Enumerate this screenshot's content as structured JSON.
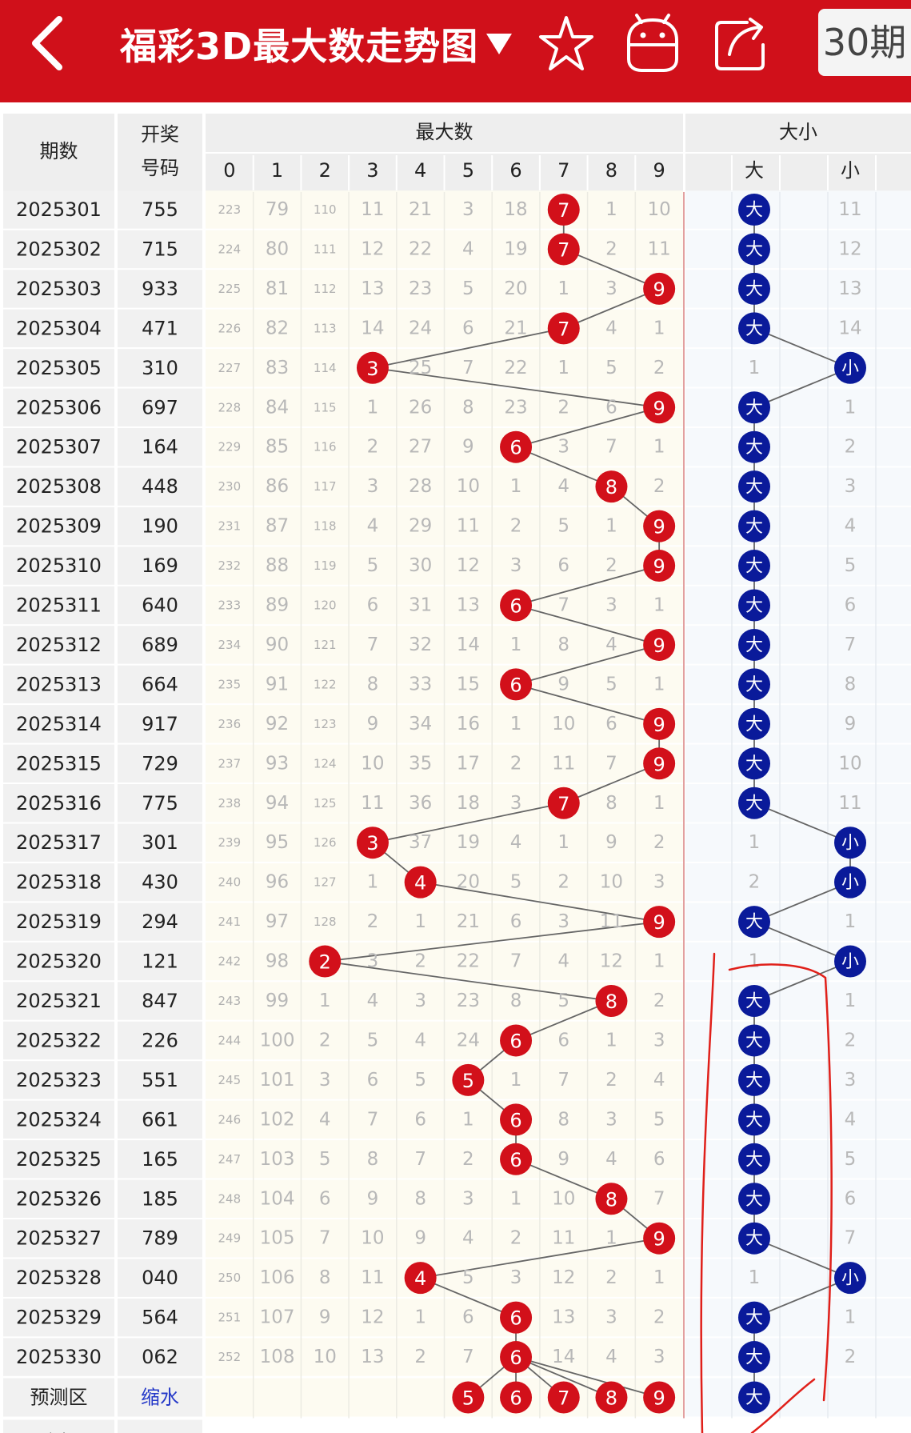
{
  "header": {
    "title": "福彩3D最大数走势图",
    "period_button": "30期",
    "icons": [
      "back-arrow-icon",
      "caret-down-icon",
      "star-icon",
      "android-icon",
      "share-icon"
    ],
    "bg_color": "#d0101a"
  },
  "table": {
    "col_period": "期数",
    "col_draw_line1": "开奖",
    "col_draw_line2": "号码",
    "group_max": "最大数",
    "group_size": "大小",
    "digits": [
      "0",
      "1",
      "2",
      "3",
      "4",
      "5",
      "6",
      "7",
      "8",
      "9"
    ],
    "size_big": "大",
    "size_small": "小",
    "rows": [
      {
        "period": "2025301",
        "draw": "755",
        "cells": [
          "223",
          "79",
          "110",
          "11",
          "21",
          "3",
          "18",
          "7",
          "1",
          "10"
        ],
        "max": 7,
        "size": "big",
        "size_miss": [
          "",
          "11"
        ]
      },
      {
        "period": "2025302",
        "draw": "715",
        "cells": [
          "224",
          "80",
          "111",
          "12",
          "22",
          "4",
          "19",
          "7",
          "2",
          "11"
        ],
        "max": 7,
        "size": "big",
        "size_miss": [
          "",
          "12"
        ]
      },
      {
        "period": "2025303",
        "draw": "933",
        "cells": [
          "225",
          "81",
          "112",
          "13",
          "23",
          "5",
          "20",
          "1",
          "3",
          "9"
        ],
        "max": 9,
        "size": "big",
        "size_miss": [
          "",
          "13"
        ]
      },
      {
        "period": "2025304",
        "draw": "471",
        "cells": [
          "226",
          "82",
          "113",
          "14",
          "24",
          "6",
          "21",
          "7",
          "4",
          "1"
        ],
        "max": 7,
        "size": "big",
        "size_miss": [
          "",
          "14"
        ]
      },
      {
        "period": "2025305",
        "draw": "310",
        "cells": [
          "227",
          "83",
          "114",
          "3",
          "25",
          "7",
          "22",
          "1",
          "5",
          "2"
        ],
        "max": 3,
        "size": "small",
        "size_miss": [
          "1",
          ""
        ]
      },
      {
        "period": "2025306",
        "draw": "697",
        "cells": [
          "228",
          "84",
          "115",
          "1",
          "26",
          "8",
          "23",
          "2",
          "6",
          "9"
        ],
        "max": 9,
        "size": "big",
        "size_miss": [
          "",
          "1"
        ]
      },
      {
        "period": "2025307",
        "draw": "164",
        "cells": [
          "229",
          "85",
          "116",
          "2",
          "27",
          "9",
          "6",
          "3",
          "7",
          "1"
        ],
        "max": 6,
        "size": "big",
        "size_miss": [
          "",
          "2"
        ]
      },
      {
        "period": "2025308",
        "draw": "448",
        "cells": [
          "230",
          "86",
          "117",
          "3",
          "28",
          "10",
          "1",
          "4",
          "8",
          "2"
        ],
        "max": 8,
        "size": "big",
        "size_miss": [
          "",
          "3"
        ]
      },
      {
        "period": "2025309",
        "draw": "190",
        "cells": [
          "231",
          "87",
          "118",
          "4",
          "29",
          "11",
          "2",
          "5",
          "1",
          "9"
        ],
        "max": 9,
        "size": "big",
        "size_miss": [
          "",
          "4"
        ]
      },
      {
        "period": "2025310",
        "draw": "169",
        "cells": [
          "232",
          "88",
          "119",
          "5",
          "30",
          "12",
          "3",
          "6",
          "2",
          "9"
        ],
        "max": 9,
        "size": "big",
        "size_miss": [
          "",
          "5"
        ]
      },
      {
        "period": "2025311",
        "draw": "640",
        "cells": [
          "233",
          "89",
          "120",
          "6",
          "31",
          "13",
          "6",
          "7",
          "3",
          "1"
        ],
        "max": 6,
        "size": "big",
        "size_miss": [
          "",
          "6"
        ]
      },
      {
        "period": "2025312",
        "draw": "689",
        "cells": [
          "234",
          "90",
          "121",
          "7",
          "32",
          "14",
          "1",
          "8",
          "4",
          "9"
        ],
        "max": 9,
        "size": "big",
        "size_miss": [
          "",
          "7"
        ]
      },
      {
        "period": "2025313",
        "draw": "664",
        "cells": [
          "235",
          "91",
          "122",
          "8",
          "33",
          "15",
          "6",
          "9",
          "5",
          "1"
        ],
        "max": 6,
        "size": "big",
        "size_miss": [
          "",
          "8"
        ]
      },
      {
        "period": "2025314",
        "draw": "917",
        "cells": [
          "236",
          "92",
          "123",
          "9",
          "34",
          "16",
          "1",
          "10",
          "6",
          "9"
        ],
        "max": 9,
        "size": "big",
        "size_miss": [
          "",
          "9"
        ]
      },
      {
        "period": "2025315",
        "draw": "729",
        "cells": [
          "237",
          "93",
          "124",
          "10",
          "35",
          "17",
          "2",
          "11",
          "7",
          "9"
        ],
        "max": 9,
        "size": "big",
        "size_miss": [
          "",
          "10"
        ]
      },
      {
        "period": "2025316",
        "draw": "775",
        "cells": [
          "238",
          "94",
          "125",
          "11",
          "36",
          "18",
          "3",
          "7",
          "8",
          "1"
        ],
        "max": 7,
        "size": "big",
        "size_miss": [
          "",
          "11"
        ]
      },
      {
        "period": "2025317",
        "draw": "301",
        "cells": [
          "239",
          "95",
          "126",
          "3",
          "37",
          "19",
          "4",
          "1",
          "9",
          "2"
        ],
        "max": 3,
        "size": "small",
        "size_miss": [
          "1",
          ""
        ]
      },
      {
        "period": "2025318",
        "draw": "430",
        "cells": [
          "240",
          "96",
          "127",
          "1",
          "4",
          "20",
          "5",
          "2",
          "10",
          "3"
        ],
        "max": 4,
        "size": "small",
        "size_miss": [
          "2",
          ""
        ]
      },
      {
        "period": "2025319",
        "draw": "294",
        "cells": [
          "241",
          "97",
          "128",
          "2",
          "1",
          "21",
          "6",
          "3",
          "11",
          "9"
        ],
        "max": 9,
        "size": "big",
        "size_miss": [
          "",
          "1"
        ]
      },
      {
        "period": "2025320",
        "draw": "121",
        "cells": [
          "242",
          "98",
          "2",
          "3",
          "2",
          "22",
          "7",
          "4",
          "12",
          "1"
        ],
        "max": 2,
        "size": "small",
        "size_miss": [
          "1",
          ""
        ]
      },
      {
        "period": "2025321",
        "draw": "847",
        "cells": [
          "243",
          "99",
          "1",
          "4",
          "3",
          "23",
          "8",
          "5",
          "8",
          "2"
        ],
        "max": 8,
        "size": "big",
        "size_miss": [
          "",
          "1"
        ]
      },
      {
        "period": "2025322",
        "draw": "226",
        "cells": [
          "244",
          "100",
          "2",
          "5",
          "4",
          "24",
          "6",
          "6",
          "1",
          "3"
        ],
        "max": 6,
        "size": "big",
        "size_miss": [
          "",
          "2"
        ]
      },
      {
        "period": "2025323",
        "draw": "551",
        "cells": [
          "245",
          "101",
          "3",
          "6",
          "5",
          "5",
          "1",
          "7",
          "2",
          "4"
        ],
        "max": 5,
        "size": "big",
        "size_miss": [
          "",
          "3"
        ]
      },
      {
        "period": "2025324",
        "draw": "661",
        "cells": [
          "246",
          "102",
          "4",
          "7",
          "6",
          "1",
          "6",
          "8",
          "3",
          "5"
        ],
        "max": 6,
        "size": "big",
        "size_miss": [
          "",
          "4"
        ]
      },
      {
        "period": "2025325",
        "draw": "165",
        "cells": [
          "247",
          "103",
          "5",
          "8",
          "7",
          "2",
          "6",
          "9",
          "4",
          "6"
        ],
        "max": 6,
        "size": "big",
        "size_miss": [
          "",
          "5"
        ]
      },
      {
        "period": "2025326",
        "draw": "185",
        "cells": [
          "248",
          "104",
          "6",
          "9",
          "8",
          "3",
          "1",
          "10",
          "8",
          "7"
        ],
        "max": 8,
        "size": "big",
        "size_miss": [
          "",
          "6"
        ]
      },
      {
        "period": "2025327",
        "draw": "789",
        "cells": [
          "249",
          "105",
          "7",
          "10",
          "9",
          "4",
          "2",
          "11",
          "1",
          "9"
        ],
        "max": 9,
        "size": "big",
        "size_miss": [
          "",
          "7"
        ]
      },
      {
        "period": "2025328",
        "draw": "040",
        "cells": [
          "250",
          "106",
          "8",
          "11",
          "4",
          "5",
          "3",
          "12",
          "2",
          "1"
        ],
        "max": 4,
        "size": "small",
        "size_miss": [
          "1",
          ""
        ]
      },
      {
        "period": "2025329",
        "draw": "564",
        "cells": [
          "251",
          "107",
          "9",
          "12",
          "1",
          "6",
          "6",
          "13",
          "3",
          "2"
        ],
        "max": 6,
        "size": "big",
        "size_miss": [
          "",
          "1"
        ]
      },
      {
        "period": "2025330",
        "draw": "062",
        "cells": [
          "252",
          "108",
          "10",
          "13",
          "2",
          "7",
          "6",
          "14",
          "4",
          "3"
        ],
        "max": 6,
        "size": "big",
        "size_miss": [
          "",
          "2"
        ]
      }
    ],
    "predict": {
      "label": "预测区",
      "link": "缩水",
      "balls": [
        "5",
        "6",
        "7",
        "8",
        "9"
      ],
      "size": "大"
    },
    "next_label": "预测区:"
  },
  "colors": {
    "red_ball": "#d2101a",
    "blue_ball": "#0a1a9a",
    "miss_text": "#b8b8b8",
    "link_blue": "#2438c8",
    "annotation_red": "#e0201a"
  }
}
